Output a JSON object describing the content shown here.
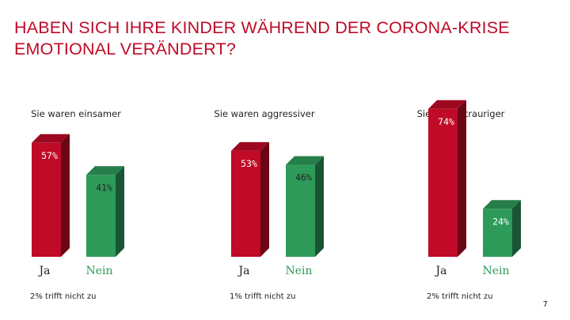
{
  "title": "HABEN SICH IHRE KINDER WÄHREND DER CORONA-KRISE EMOTIONAL VERÄNDERT?",
  "page_number": "7",
  "colors": {
    "ja": "#c00a27",
    "nein": "#2e9a5a"
  },
  "chart_data": [
    {
      "type": "bar",
      "title": "Sie waren einsamer",
      "categories": [
        "Ja",
        "Nein"
      ],
      "values": [
        57,
        41
      ],
      "labels": [
        "57%",
        "41%"
      ],
      "footnote": "2% trifft nicht zu",
      "ylim": [
        0,
        100
      ]
    },
    {
      "type": "bar",
      "title": "Sie waren aggressiver",
      "categories": [
        "Ja",
        "Nein"
      ],
      "values": [
        53,
        46
      ],
      "labels": [
        "53%",
        "46%"
      ],
      "footnote": "1% trifft nicht zu",
      "ylim": [
        0,
        100
      ]
    },
    {
      "type": "bar",
      "title": "Sie waren trauriger",
      "categories": [
        "Ja",
        "Nein"
      ],
      "values": [
        74,
        24
      ],
      "labels": [
        "74%",
        "24%"
      ],
      "footnote": "2% trifft nicht zu",
      "ylim": [
        0,
        100
      ]
    }
  ]
}
